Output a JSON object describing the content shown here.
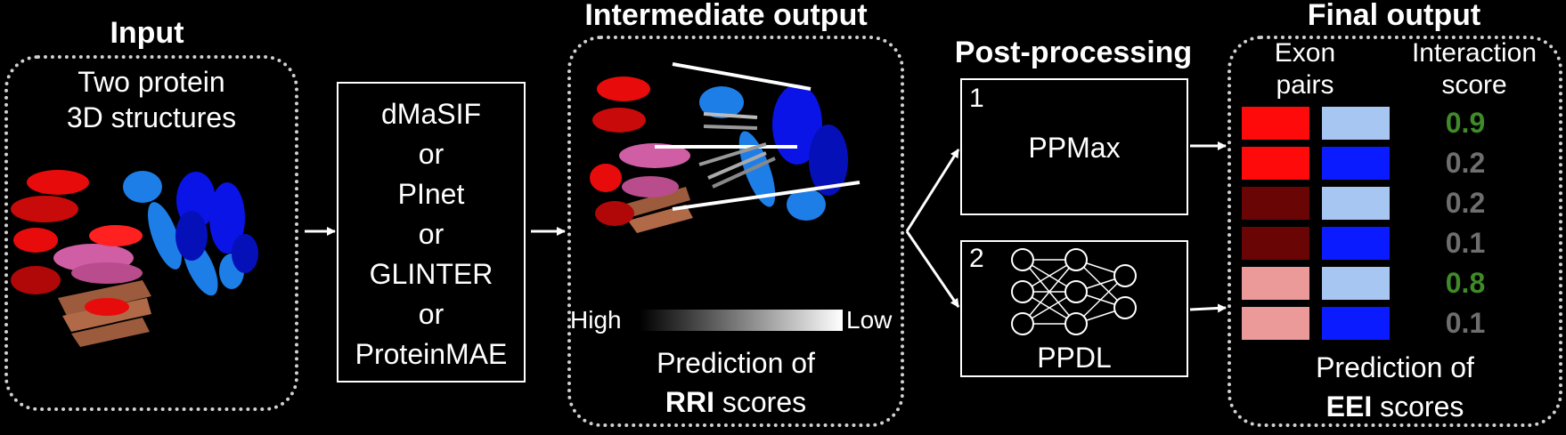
{
  "input": {
    "title": "Input",
    "line1": "Two protein",
    "line2": "3D structures"
  },
  "methods": {
    "lines": [
      "dMaSIF",
      "or",
      "PInet",
      "or",
      "GLINTER",
      "or",
      "ProteinMAE"
    ]
  },
  "intermediate": {
    "title": "Intermediate output",
    "scale_high": "High",
    "scale_low": "Low",
    "caption_line1": "Prediction of",
    "caption_bold": "RRI",
    "caption_rest": "scores"
  },
  "postprocessing": {
    "title": "Post-processing",
    "option1_number": "1",
    "option1_label": "PPMax",
    "option2_number": "2",
    "option2_label": "PPDL"
  },
  "final": {
    "title": "Final output",
    "col1_line1": "Exon",
    "col1_line2": "pairs",
    "col2_line1": "Interaction",
    "col2_line2": "score",
    "rows": [
      {
        "exon_a_color": "#ff0a0a",
        "exon_b_color": "#a8c6f2",
        "score": "0.9",
        "score_color": "#3e8b28"
      },
      {
        "exon_a_color": "#ff0a0a",
        "exon_b_color": "#0a1cff",
        "score": "0.2",
        "score_color": "#6e6e6e"
      },
      {
        "exon_a_color": "#6a0505",
        "exon_b_color": "#a8c6f2",
        "score": "0.2",
        "score_color": "#6e6e6e"
      },
      {
        "exon_a_color": "#6a0505",
        "exon_b_color": "#0a1cff",
        "score": "0.1",
        "score_color": "#6e6e6e"
      },
      {
        "exon_a_color": "#eb9999",
        "exon_b_color": "#a8c6f2",
        "score": "0.8",
        "score_color": "#3e8b28"
      },
      {
        "exon_a_color": "#eb9999",
        "exon_b_color": "#0a1cff",
        "score": "0.1",
        "score_color": "#6e6e6e"
      }
    ],
    "caption_line1": "Prediction of",
    "caption_bold": "EEI",
    "caption_rest": "scores"
  }
}
